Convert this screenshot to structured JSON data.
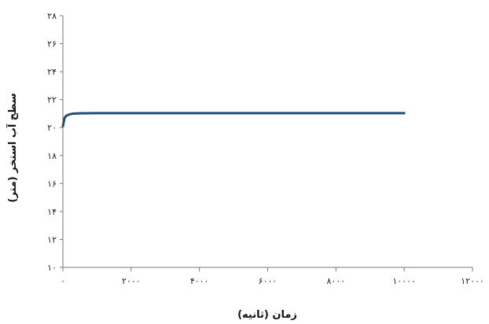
{
  "chart_data": {
    "type": "line",
    "title": "",
    "xlabel": "زمان (ثانیه)",
    "ylabel": "سطح آب استخر (متر)",
    "xlim": [
      0,
      12000
    ],
    "ylim": [
      10,
      28
    ],
    "x_ticks": [
      0,
      2000,
      4000,
      6000,
      8000,
      10000,
      12000
    ],
    "y_ticks": [
      10,
      12,
      14,
      16,
      18,
      20,
      22,
      24,
      26,
      28
    ],
    "x_tick_labels": [
      "۰",
      "۲۰۰۰",
      "۴۰۰۰",
      "۶۰۰۰",
      "۸۰۰۰",
      "۱۰۰۰۰",
      "۱۲۰۰۰"
    ],
    "y_tick_labels": [
      "۱۰",
      "۱۲",
      "۱۴",
      "۱۶",
      "۱۸",
      "۲۰",
      "۲۲",
      "۲۴",
      "۲۶",
      "۲۸"
    ],
    "grid": false,
    "legend": "none",
    "series": [
      {
        "color": "#1f4e79",
        "x": [
          0,
          50,
          100,
          200,
          300,
          500,
          1000,
          2000,
          4000,
          6000,
          8000,
          10000
        ],
        "y": [
          20.1,
          20.7,
          20.85,
          20.95,
          21.0,
          21.02,
          21.03,
          21.03,
          21.03,
          21.03,
          21.03,
          21.03
        ]
      }
    ]
  }
}
